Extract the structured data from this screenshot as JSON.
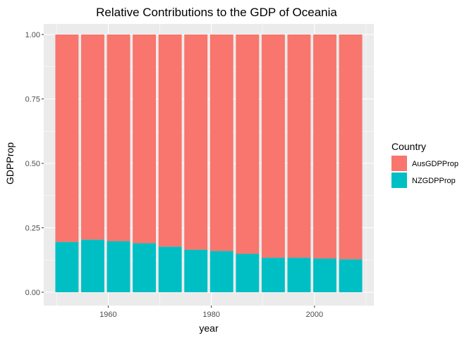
{
  "chart_data": {
    "type": "bar",
    "stacked": true,
    "title": "Relative Contributions to the GDP of Oceania",
    "xlabel": "year",
    "ylabel": "GDPProp",
    "xlim": [
      1947.5,
      2011.5
    ],
    "ylim": [
      0,
      1
    ],
    "x_ticks": [
      1960,
      1980,
      2000
    ],
    "y_ticks": [
      0,
      0.25,
      0.5,
      0.75,
      1.0
    ],
    "y_tick_labels": [
      "0.00",
      "0.25",
      "0.50",
      "0.75",
      "1.00"
    ],
    "bar_width_years": 4.5,
    "grid": true,
    "legend_position": "right",
    "legend_title": "Country",
    "x": [
      1952,
      1957,
      1962,
      1967,
      1972,
      1977,
      1982,
      1987,
      1992,
      1997,
      2002,
      2007
    ],
    "series": [
      {
        "name": "AusGDPProp",
        "color": "#F8766D",
        "values": [
          0.805,
          0.796,
          0.802,
          0.81,
          0.823,
          0.835,
          0.84,
          0.851,
          0.866,
          0.866,
          0.869,
          0.872
        ]
      },
      {
        "name": "NZGDPProp",
        "color": "#00BFC4",
        "values": [
          0.195,
          0.204,
          0.198,
          0.19,
          0.177,
          0.165,
          0.16,
          0.149,
          0.134,
          0.134,
          0.131,
          0.128
        ]
      }
    ]
  }
}
